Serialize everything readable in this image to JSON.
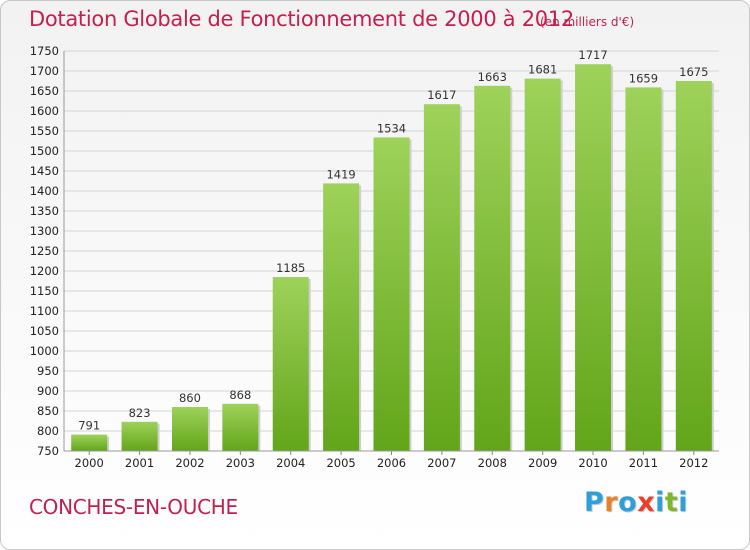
{
  "header": {
    "title": "Dotation Globale de Fonctionnement de 2000 à 2012",
    "unit_note": "(en milliers d'€)"
  },
  "footer": {
    "town": "CONCHES-EN-OUCHE",
    "logo_letters": [
      "P",
      "r",
      "o",
      "x",
      "i",
      "t",
      "i"
    ],
    "logo_colors": [
      "#2f9fd8",
      "#e8822a",
      "#2f9fd8",
      "#e8402a",
      "#2f9fd8",
      "#7cb82f",
      "#2f9fd8"
    ]
  },
  "chart_data": {
    "type": "bar",
    "title": "Dotation Globale de Fonctionnement de 2000 à 2012",
    "subtitle": "(en milliers d'€)",
    "xlabel": "",
    "ylabel": "",
    "categories": [
      "2000",
      "2001",
      "2002",
      "2003",
      "2004",
      "2005",
      "2006",
      "2007",
      "2008",
      "2009",
      "2010",
      "2011",
      "2012"
    ],
    "values": [
      791,
      823,
      860,
      868,
      1185,
      1419,
      1534,
      1617,
      1663,
      1681,
      1717,
      1659,
      1675
    ],
    "ylim": [
      750,
      1750
    ],
    "ytick_step": 50,
    "grid": true,
    "bar_color_top": "#9ed25a",
    "bar_color_bottom": "#62a51a",
    "legend": "none"
  }
}
